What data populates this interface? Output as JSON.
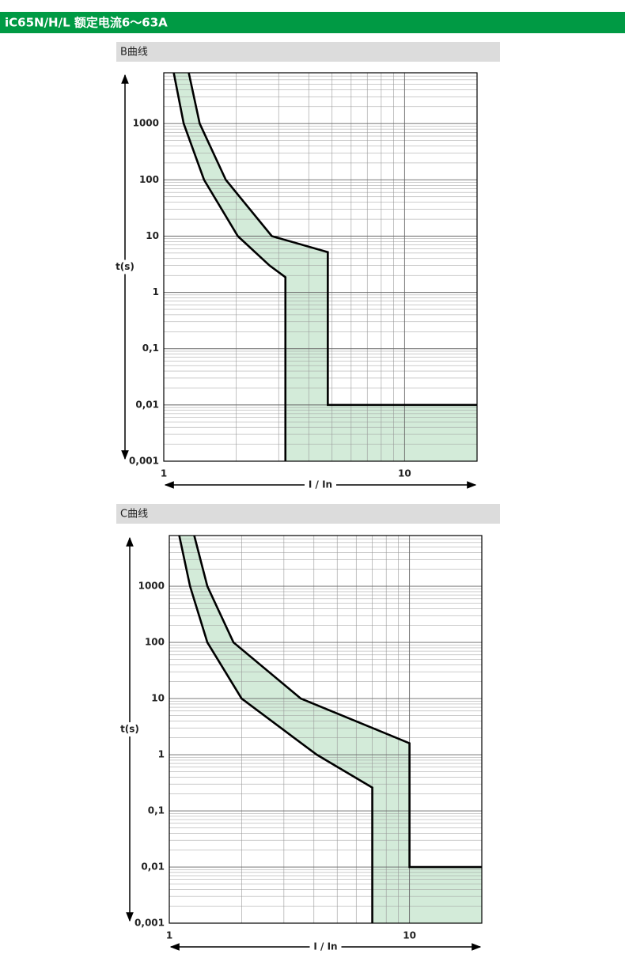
{
  "header": {
    "title": "iC65N/H/L 额定电流6～63A"
  },
  "chart_data": [
    {
      "type": "area",
      "title": "B曲线",
      "x_label": "I / In",
      "y_label": "t(s)",
      "log_x": true,
      "log_y": true,
      "grid": true,
      "fill": "#d3ebd9",
      "xlim": [
        1,
        20
      ],
      "ylim": [
        0.001,
        8000
      ],
      "xticks": [
        1,
        10
      ],
      "yticks": [
        {
          "value": 0.001,
          "label": "0,001"
        },
        {
          "value": 0.01,
          "label": "0,01"
        },
        {
          "value": 0.1,
          "label": "0,1"
        },
        1,
        10,
        100,
        1000
      ],
      "series": [
        {
          "color": "#000000",
          "x": [
            1.1,
            1.21,
            1.47,
            2.03,
            2.75,
            3.2,
            3.2
          ],
          "values": [
            8000,
            1000,
            100,
            10,
            3,
            1.86,
            0.001
          ]
        },
        {
          "color": "#000000",
          "x": [
            1.27,
            1.41,
            1.81,
            2.81,
            4.8,
            4.8,
            20
          ],
          "values": [
            8000,
            1000,
            100,
            10,
            5.2,
            0.01,
            0.01
          ]
        }
      ]
    },
    {
      "type": "area",
      "title": "C曲线",
      "x_label": "I / In",
      "y_label": "t(s)",
      "log_x": true,
      "log_y": true,
      "grid": true,
      "fill": "#d3ebd9",
      "xlim": [
        1,
        20
      ],
      "ylim": [
        0.001,
        8000
      ],
      "xticks": [
        1,
        10
      ],
      "yticks": [
        {
          "value": 0.001,
          "label": "0,001"
        },
        {
          "value": 0.01,
          "label": "0,01"
        },
        {
          "value": 0.1,
          "label": "0,1"
        },
        1,
        10,
        100,
        1000
      ],
      "series": [
        {
          "color": "#000000",
          "x": [
            1.1,
            1.22,
            1.44,
            2.0,
            4.11,
            7.0,
            7.0
          ],
          "values": [
            8000,
            1000,
            100,
            10,
            1,
            0.26,
            0.001
          ]
        },
        {
          "color": "#000000",
          "x": [
            1.27,
            1.44,
            1.85,
            3.53,
            10,
            10,
            20
          ],
          "values": [
            8000,
            1000,
            100,
            10,
            1.6,
            0.01,
            0.01
          ]
        }
      ]
    }
  ]
}
